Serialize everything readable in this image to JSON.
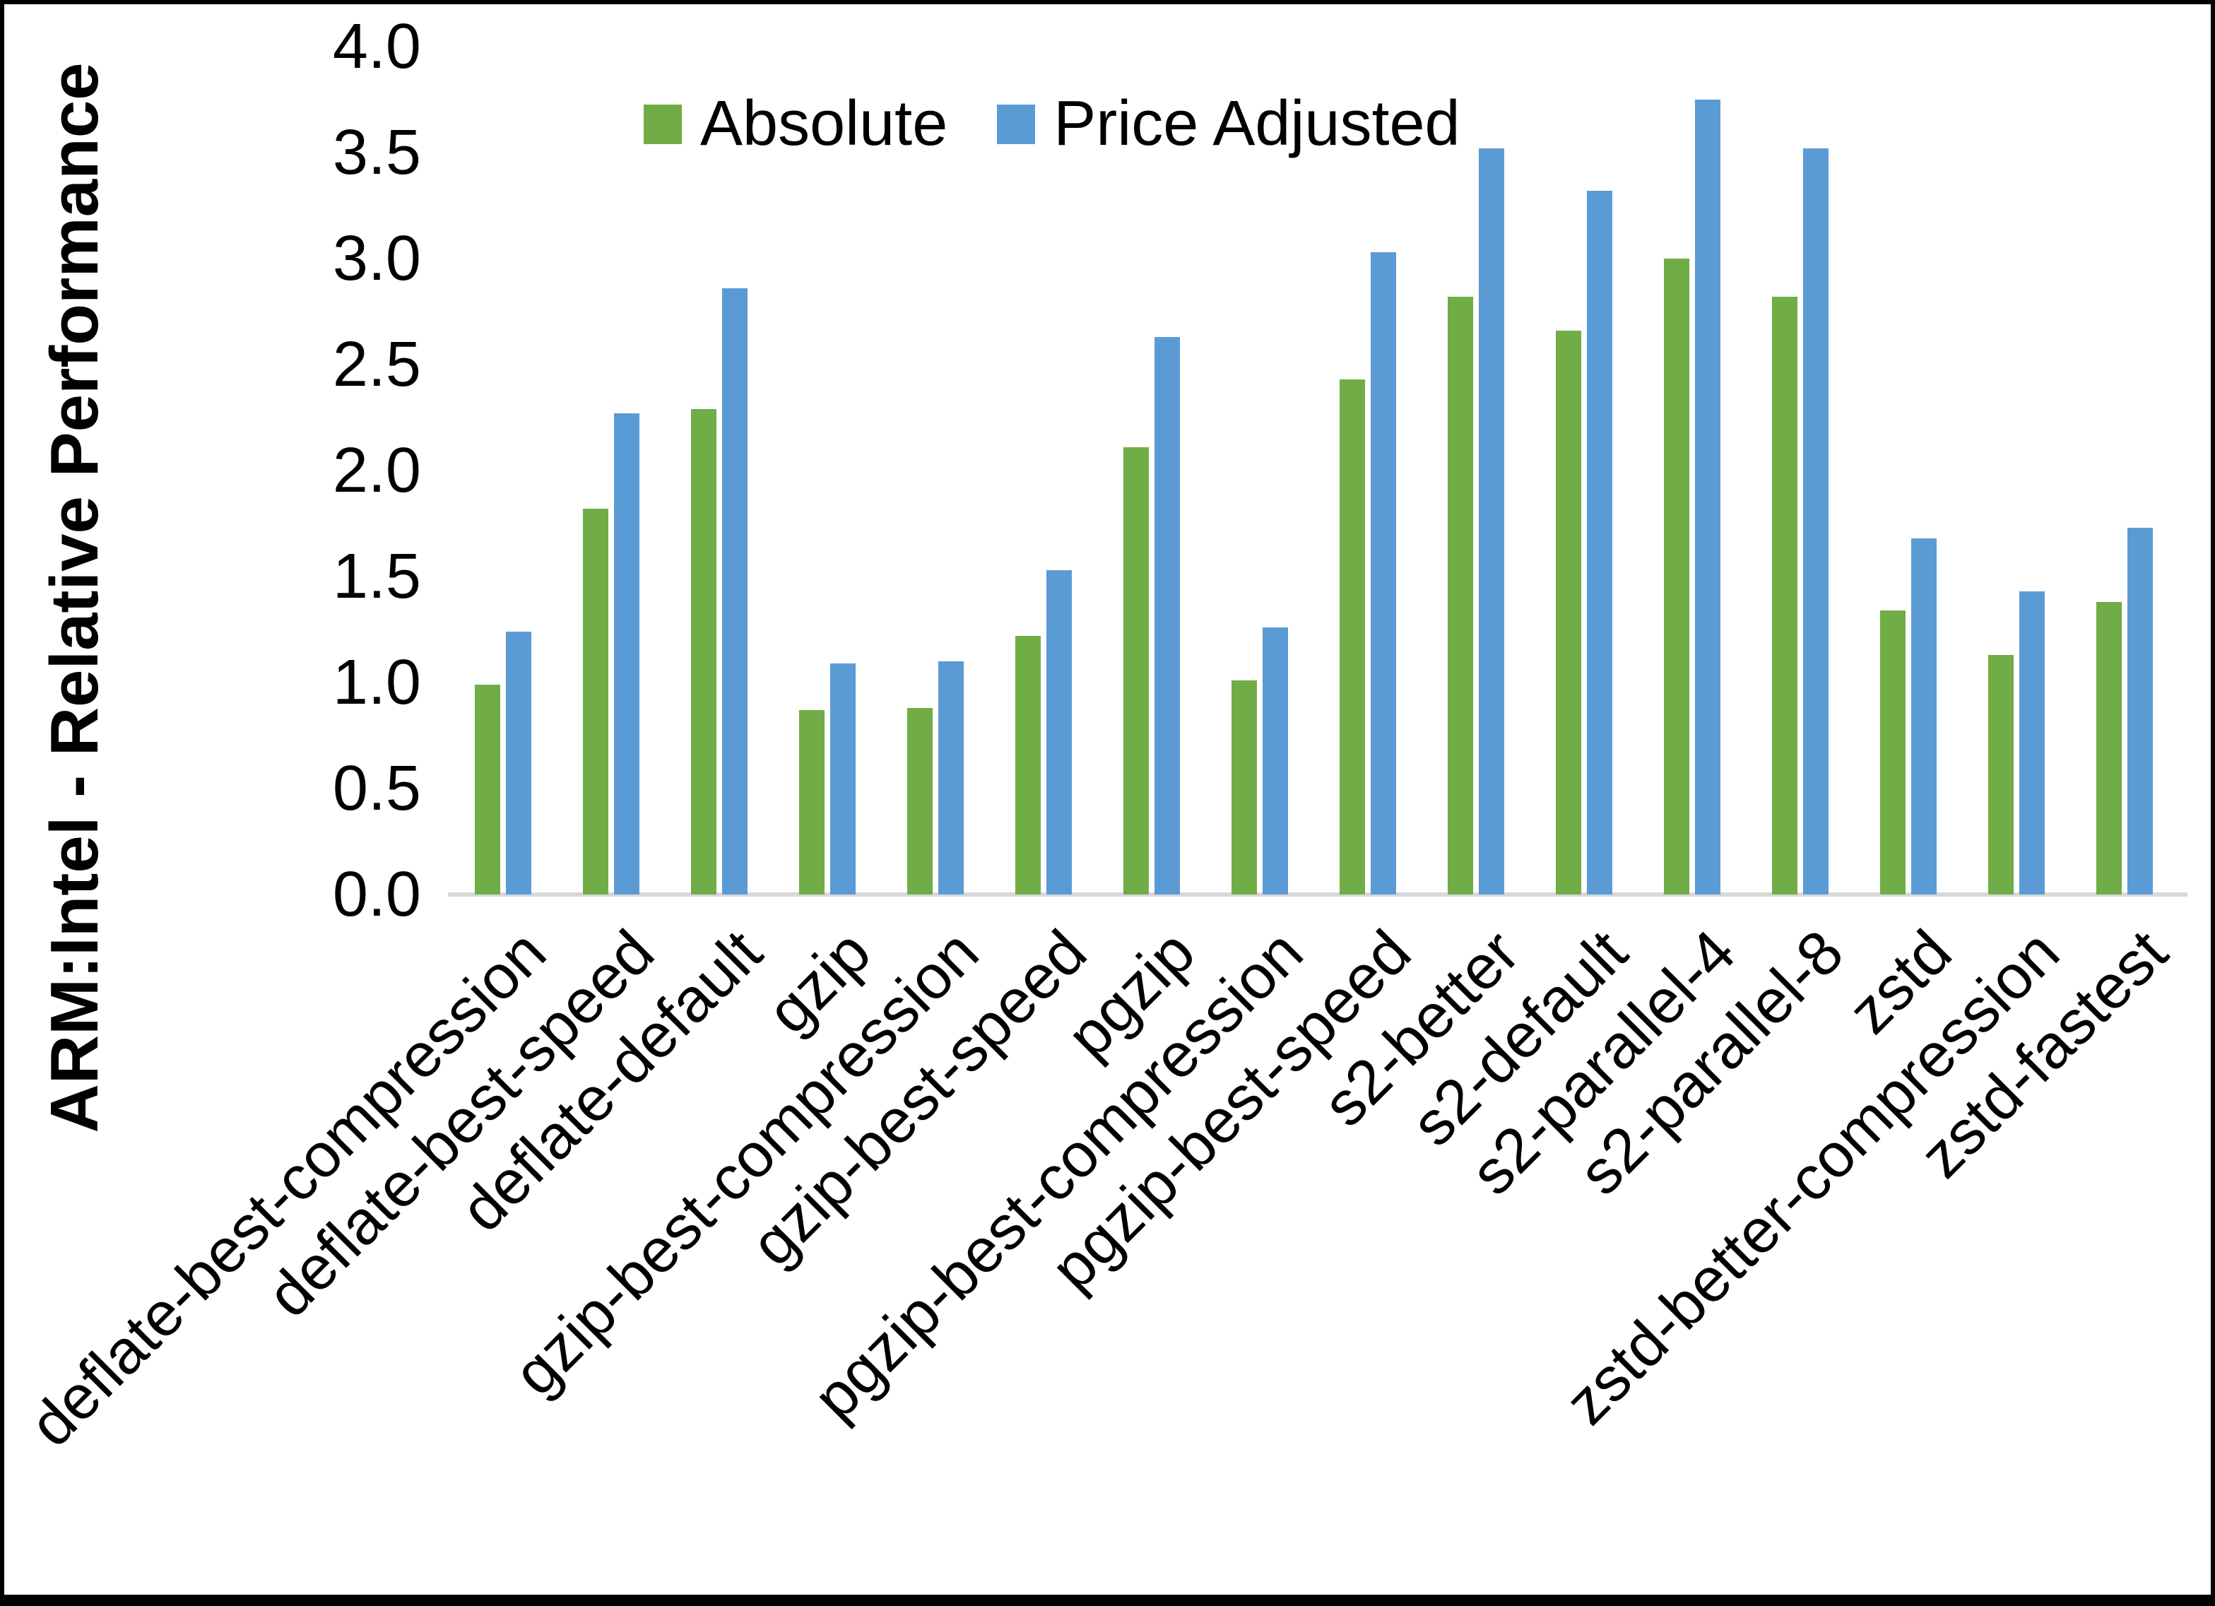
{
  "chart": {
    "legend_labels": [
      "Absolute",
      "Price Adjusted"
    ]
  },
  "chart_data": {
    "type": "bar",
    "title": "",
    "ylabel": "ARM:Intel - Relative Performance",
    "xlabel": "",
    "ylim": [
      0.0,
      4.0
    ],
    "ytick_step": 0.5,
    "ytick_labels": [
      "0.0",
      "0.5",
      "1.0",
      "1.5",
      "2.0",
      "2.5",
      "3.0",
      "3.5",
      "4.0"
    ],
    "grid": false,
    "legend_position": "top",
    "categories": [
      "deflate-best-compression",
      "deflate-best-speed",
      "deflate-default",
      "gzip",
      "gzip-best-compression",
      "gzip-best-speed",
      "pgzip",
      "pgzip-best-compression",
      "pgzip-best-speed",
      "s2-better",
      "s2-default",
      "s2-parallel-4",
      "s2-parallel-8",
      "zstd",
      "zstd-better-compression",
      "zstd-fastest"
    ],
    "series": [
      {
        "name": "Absolute",
        "color": "#70AD47",
        "values": [
          0.99,
          1.82,
          2.29,
          0.87,
          0.88,
          1.22,
          2.11,
          1.01,
          2.43,
          2.82,
          2.66,
          3.0,
          2.82,
          1.34,
          1.13,
          1.38
        ]
      },
      {
        "name": "Price Adjusted",
        "color": "#5B9BD5",
        "values": [
          1.24,
          2.27,
          2.86,
          1.09,
          1.1,
          1.53,
          2.63,
          1.26,
          3.03,
          3.52,
          3.32,
          3.75,
          3.52,
          1.68,
          1.43,
          1.73
        ]
      }
    ]
  }
}
